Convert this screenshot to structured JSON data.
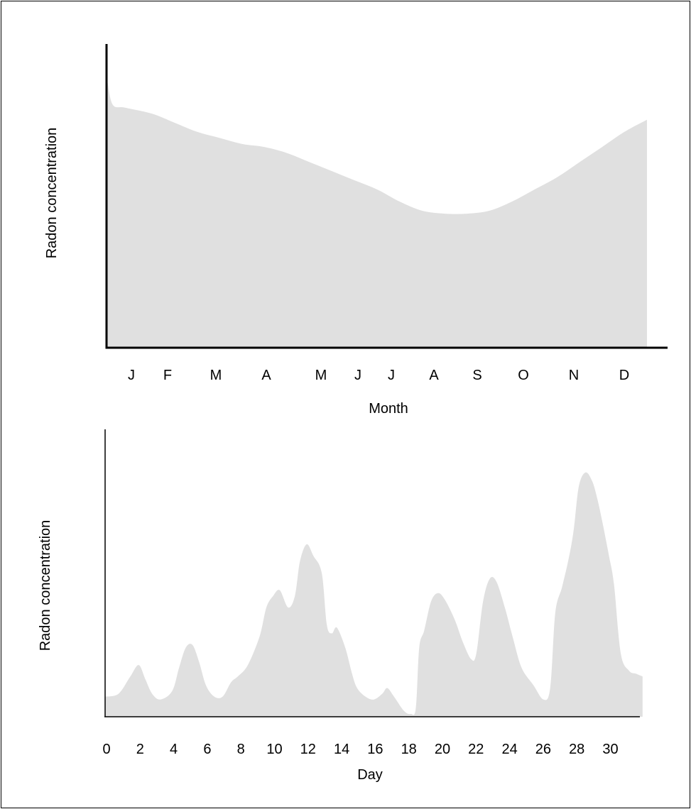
{
  "charts": {
    "fill_color": "#e0e0e0",
    "axis_color": "#000000"
  },
  "chart_data": [
    {
      "type": "area",
      "title": "",
      "xlabel": "Month",
      "ylabel": "Radon concentration",
      "x_tick_labels": [
        "J",
        "F",
        "M",
        "A",
        "M",
        "J",
        "J",
        "A",
        "S",
        "O",
        "N",
        "D"
      ],
      "x_domain": [
        0,
        12
      ],
      "ylim": [
        0,
        100
      ],
      "y_ticks_shown": false,
      "grid": false,
      "series": [
        {
          "x": [
            0,
            0.12,
            0.4,
            1.0,
            1.5,
            2.0,
            2.5,
            3.0,
            3.5,
            4.0,
            4.5,
            5.0,
            5.5,
            6.0,
            6.5,
            7.0,
            7.5,
            8.0,
            8.5,
            9.0,
            9.5,
            10.0,
            10.5,
            11.0,
            11.5,
            12.0
          ],
          "values": [
            88,
            80,
            79,
            77,
            74,
            71,
            69,
            67,
            66,
            64,
            61,
            58,
            55,
            52,
            48,
            45,
            44,
            44,
            45,
            48,
            52,
            56,
            61,
            66,
            71,
            75
          ]
        }
      ]
    },
    {
      "type": "area",
      "title": "",
      "xlabel": "Day",
      "ylabel": "Radon concentration",
      "x_ticks": [
        0,
        2,
        4,
        6,
        8,
        10,
        12,
        14,
        16,
        18,
        20,
        22,
        24,
        26,
        28,
        30
      ],
      "xlim": [
        0,
        32
      ],
      "ylim": [
        0,
        100
      ],
      "y_ticks_shown": false,
      "grid": false,
      "series": [
        {
          "x": [
            0,
            0.8,
            1.5,
            2.0,
            2.4,
            2.8,
            3.3,
            4.0,
            4.4,
            4.8,
            5.2,
            5.6,
            6.0,
            6.5,
            7.0,
            7.5,
            7.9,
            8.5,
            9.2,
            9.6,
            10.0,
            10.4,
            10.9,
            11.3,
            11.6,
            12.0,
            12.4,
            12.9,
            13.2,
            13.5,
            13.8,
            14.3,
            14.7,
            15.0,
            15.5,
            16.0,
            16.5,
            16.8,
            17.2,
            17.8,
            18.2,
            18.5,
            18.7,
            19.0,
            19.4,
            19.8,
            20.2,
            20.8,
            21.3,
            21.8,
            22.1,
            22.5,
            22.9,
            23.3,
            23.8,
            24.3,
            24.8,
            25.5,
            26.1,
            26.5,
            26.8,
            27.2,
            27.6,
            27.9,
            28.2,
            28.6,
            29.0,
            29.3,
            29.6,
            30.0,
            30.3,
            30.7,
            31.2,
            31.6,
            32.0
          ],
          "values": [
            7,
            8,
            14,
            18,
            13,
            8,
            6,
            9,
            17,
            24,
            25,
            19,
            11,
            7,
            7,
            12,
            14,
            18,
            28,
            38,
            42,
            44,
            38,
            42,
            54,
            60,
            56,
            50,
            32,
            29,
            31,
            24,
            15,
            10,
            7,
            6,
            8,
            10,
            7,
            2,
            1,
            3,
            24,
            30,
            40,
            43,
            41,
            34,
            26,
            20,
            22,
            40,
            48,
            47,
            38,
            27,
            17,
            11,
            6,
            10,
            36,
            45,
            55,
            65,
            80,
            85,
            82,
            76,
            68,
            56,
            46,
            22,
            16,
            15,
            14
          ]
        }
      ]
    }
  ]
}
